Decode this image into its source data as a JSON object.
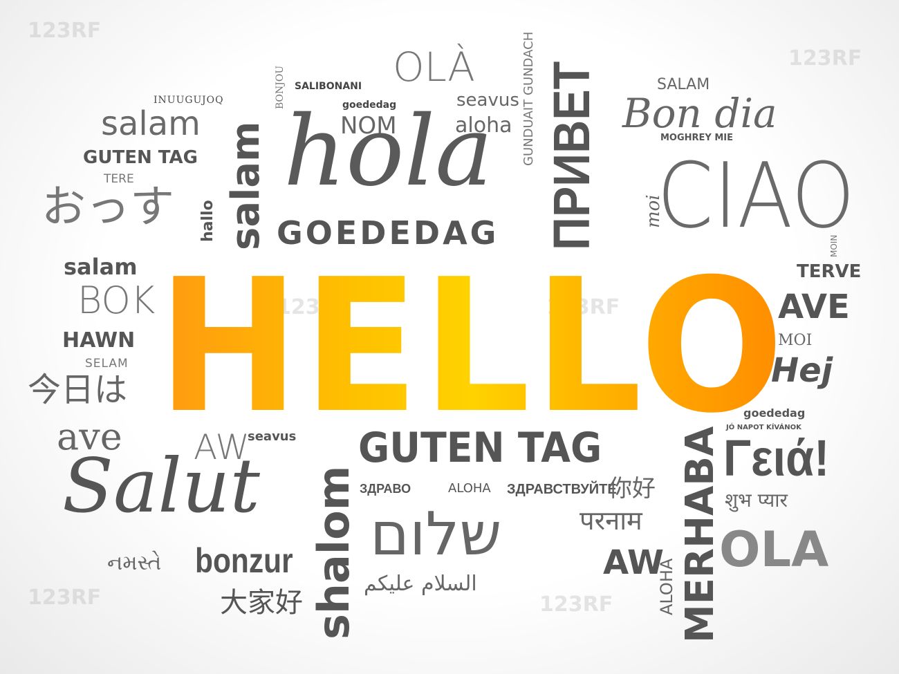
{
  "hero": {
    "text": "HELLO"
  },
  "watermark": "123RF",
  "words": [
    {
      "t": "INUUGUJOQ"
    },
    {
      "t": "salam"
    },
    {
      "t": "GUTEN TAG"
    },
    {
      "t": "TERE"
    },
    {
      "t": "おっす"
    },
    {
      "t": "hallo"
    },
    {
      "t": "salam"
    },
    {
      "t": "BONJOU"
    },
    {
      "t": "SALIBONANI"
    },
    {
      "t": "goededag"
    },
    {
      "t": "NOM"
    },
    {
      "t": "hola"
    },
    {
      "t": "GOEDEDAG"
    },
    {
      "t": "OLÀ"
    },
    {
      "t": "seavus"
    },
    {
      "t": "aloha"
    },
    {
      "t": "GUNDACH"
    },
    {
      "t": "GUNDUAIT"
    },
    {
      "t": "ПРИВЕТ"
    },
    {
      "t": "SALAM"
    },
    {
      "t": "Bon dia"
    },
    {
      "t": "MOGHREY MIE"
    },
    {
      "t": "moi"
    },
    {
      "t": "CIAO"
    },
    {
      "t": "MOIN"
    },
    {
      "t": "salam"
    },
    {
      "t": "BOK"
    },
    {
      "t": "HAWN"
    },
    {
      "t": "SELAM"
    },
    {
      "t": "今日は"
    },
    {
      "t": "TERVE"
    },
    {
      "t": "AVE"
    },
    {
      "t": "MOI"
    },
    {
      "t": "Hej"
    },
    {
      "t": "goededag"
    },
    {
      "t": "ave"
    },
    {
      "t": "AW"
    },
    {
      "t": "seavus"
    },
    {
      "t": "Salut"
    },
    {
      "t": "નમસ્તે"
    },
    {
      "t": "bonzur"
    },
    {
      "t": "大家好"
    },
    {
      "t": "shalom"
    },
    {
      "t": "GUTEN TAG"
    },
    {
      "t": "ЗДРАВО"
    },
    {
      "t": "ALOHA"
    },
    {
      "t": "ЗДРАВСТВУЙТЕ"
    },
    {
      "t": "你好"
    },
    {
      "t": "שלום"
    },
    {
      "t": "परनाम"
    },
    {
      "t": "السلام عليكم"
    },
    {
      "t": "AW"
    },
    {
      "t": "ALOHA"
    },
    {
      "t": "MERHABA"
    },
    {
      "t": "JÓ NAPOT KÍVÁNOK"
    },
    {
      "t": "Γειά!"
    },
    {
      "t": "शुभ प्यार"
    },
    {
      "t": "OLA"
    }
  ]
}
